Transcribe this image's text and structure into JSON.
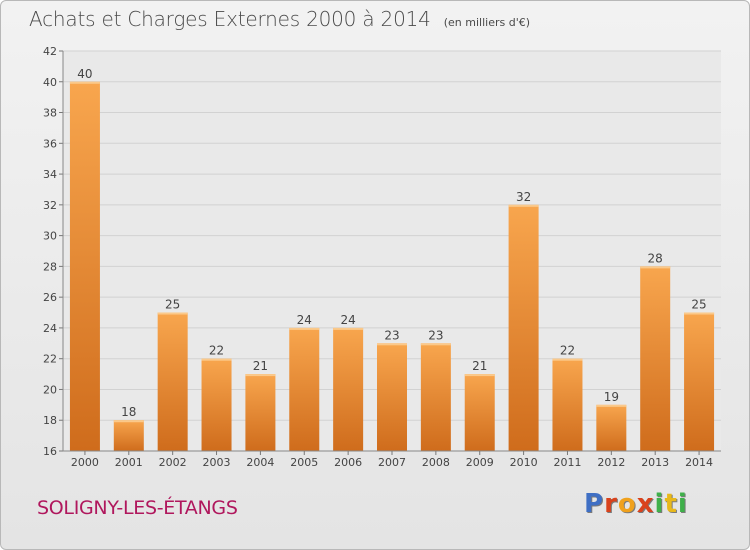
{
  "header": {
    "title": "Achats et Charges Externes 2000 à 2014",
    "unit": "(en milliers d'€)"
  },
  "footer": {
    "commune": "SOLIGNY-LES-ÉTANGS",
    "logo_text": "Proxiti"
  },
  "colors": {
    "bar_top": "#f8a64e",
    "bar_bottom": "#cf6c1c",
    "commune_text": "#b0175d",
    "logo_letters": [
      "#3f6fc4",
      "#d9421c",
      "#f0a11c",
      "#d9421c",
      "#3fb04a",
      "#e8b81a",
      "#3fb04a"
    ]
  },
  "chart_data": {
    "type": "bar",
    "categories": [
      "2000",
      "2001",
      "2002",
      "2003",
      "2004",
      "2005",
      "2006",
      "2007",
      "2008",
      "2009",
      "2010",
      "2011",
      "2012",
      "2013",
      "2014"
    ],
    "values": [
      40,
      18,
      25,
      22,
      21,
      24,
      24,
      23,
      23,
      21,
      32,
      22,
      19,
      28,
      25
    ],
    "title": "Achats et Charges Externes 2000 à 2014",
    "ylim": [
      16,
      42
    ],
    "yticks": [
      16,
      18,
      20,
      22,
      24,
      26,
      28,
      30,
      32,
      34,
      36,
      38,
      40,
      42
    ],
    "grid": true,
    "legend": "none"
  }
}
